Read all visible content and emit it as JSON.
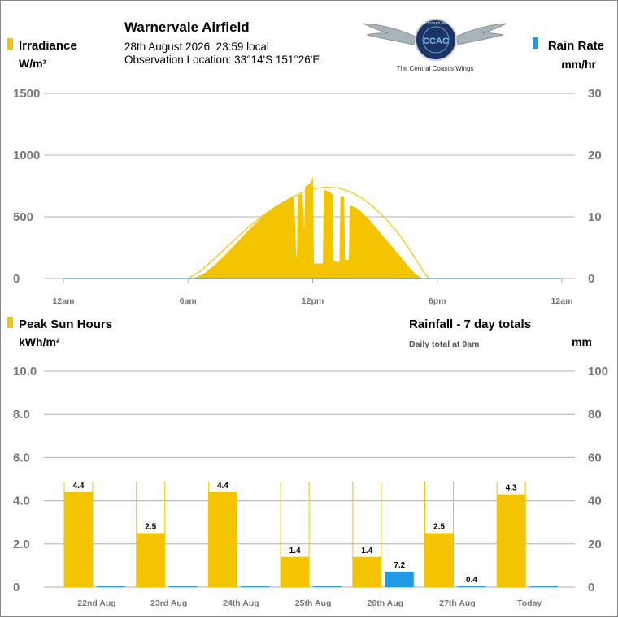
{
  "header": {
    "site": "Warnervale Airfield",
    "datetime": "28th August 2026  23:59 local",
    "location": "Observation Location: 33°14'S 151°26'E",
    "logo_ring": "CENTRAL COAST AERO CLUB",
    "logo_monogram": "CCAC",
    "logo_tagline": "The Central Coast's Wings"
  },
  "colors": {
    "solar": "#f5c400",
    "rain": "#1e9be3",
    "grid": "#b0b0b0",
    "axis_text": "#777777",
    "envelope": "#f5c400"
  },
  "chart_data": [
    {
      "type": "area",
      "left_title": "Irradiance",
      "left_unit": "W/m²",
      "right_title": "Rain Rate",
      "right_unit": "mm/hr",
      "x_ticks": [
        "12am",
        "6am",
        "12pm",
        "6pm",
        "12am"
      ],
      "x_range_hours": [
        0,
        24
      ],
      "y_left": {
        "range": [
          0,
          1500
        ],
        "ticks": [
          "0",
          "500",
          "1000",
          "1500"
        ]
      },
      "y_right": {
        "range": [
          0,
          30
        ],
        "ticks": [
          "0",
          "10",
          "20",
          "30"
        ]
      },
      "grid": true,
      "series": [
        {
          "values": [
            [
              0,
              0
            ],
            [
              6.2,
              0
            ],
            [
              6.5,
              15
            ],
            [
              6.8,
              40
            ],
            [
              7.0,
              70
            ],
            [
              7.3,
              110
            ],
            [
              7.6,
              160
            ],
            [
              7.9,
              210
            ],
            [
              8.2,
              260
            ],
            [
              8.5,
              315
            ],
            [
              8.8,
              370
            ],
            [
              9.1,
              420
            ],
            [
              9.4,
              470
            ],
            [
              9.7,
              515
            ],
            [
              10.0,
              555
            ],
            [
              10.3,
              590
            ],
            [
              10.6,
              620
            ],
            [
              10.9,
              645
            ],
            [
              11.1,
              660
            ],
            [
              11.2,
              170
            ],
            [
              11.25,
              180
            ],
            [
              11.3,
              670
            ],
            [
              11.5,
              690
            ],
            [
              11.6,
              330
            ],
            [
              11.65,
              740
            ],
            [
              11.8,
              760
            ],
            [
              11.95,
              780
            ],
            [
              12.0,
              820
            ],
            [
              12.05,
              120
            ],
            [
              12.5,
              120
            ],
            [
              12.55,
              720
            ],
            [
              12.8,
              700
            ],
            [
              12.95,
              680
            ],
            [
              13.0,
              140
            ],
            [
              13.3,
              130
            ],
            [
              13.35,
              670
            ],
            [
              13.5,
              660
            ],
            [
              13.55,
              150
            ],
            [
              13.75,
              150
            ],
            [
              13.8,
              590
            ],
            [
              14.1,
              570
            ],
            [
              14.4,
              530
            ],
            [
              14.7,
              480
            ],
            [
              15.0,
              420
            ],
            [
              15.3,
              360
            ],
            [
              15.6,
              300
            ],
            [
              15.9,
              240
            ],
            [
              16.2,
              180
            ],
            [
              16.5,
              120
            ],
            [
              16.8,
              60
            ],
            [
              17.1,
              15
            ],
            [
              17.3,
              0
            ],
            [
              24,
              0
            ]
          ]
        },
        {
          "values": [
            [
              0,
              0
            ],
            [
              24,
              0
            ]
          ]
        }
      ],
      "envelope": [
        [
          6.0,
          0
        ],
        [
          6.6,
          60
        ],
        [
          7.2,
          150
        ],
        [
          7.8,
          245
        ],
        [
          8.4,
          340
        ],
        [
          9.0,
          430
        ],
        [
          9.6,
          510
        ],
        [
          10.2,
          580
        ],
        [
          10.8,
          640
        ],
        [
          11.4,
          690
        ],
        [
          12.0,
          725
        ],
        [
          12.6,
          740
        ],
        [
          13.2,
          735
        ],
        [
          13.8,
          705
        ],
        [
          14.4,
          650
        ],
        [
          15.0,
          570
        ],
        [
          15.6,
          470
        ],
        [
          16.2,
          350
        ],
        [
          16.8,
          200
        ],
        [
          17.4,
          40
        ],
        [
          17.6,
          0
        ]
      ]
    },
    {
      "type": "bar",
      "left_title": "Peak Sun Hours",
      "left_unit": "kWh/m²",
      "right_title": "Rainfall - 7 day totals",
      "right_subtitle": "Daily total at 9am",
      "right_unit": "mm",
      "categories": [
        "22nd Aug",
        "23rd Aug",
        "24th Aug",
        "25th Aug",
        "26th Aug",
        "27th Aug",
        "Today"
      ],
      "y_left": {
        "range": [
          0,
          10
        ],
        "ticks": [
          "0",
          "2.0",
          "4.0",
          "6.0",
          "8.0",
          "10.0"
        ]
      },
      "y_right": {
        "range": [
          0,
          100
        ],
        "ticks": [
          "0",
          "20",
          "40",
          "60",
          "80",
          "100"
        ]
      },
      "grid": true,
      "series": [
        {
          "values": [
            4.4,
            2.5,
            4.4,
            1.4,
            1.4,
            2.5,
            4.3
          ],
          "labels": [
            "4.4",
            "2.5",
            "4.4",
            "1.4",
            "1.4",
            "2.5",
            "4.3"
          ]
        },
        {
          "values": [
            0,
            0,
            0,
            0,
            7.2,
            0.4,
            0
          ],
          "labels": [
            "",
            "",
            "",
            "",
            "7.2",
            "0.4",
            ""
          ]
        }
      ]
    }
  ]
}
